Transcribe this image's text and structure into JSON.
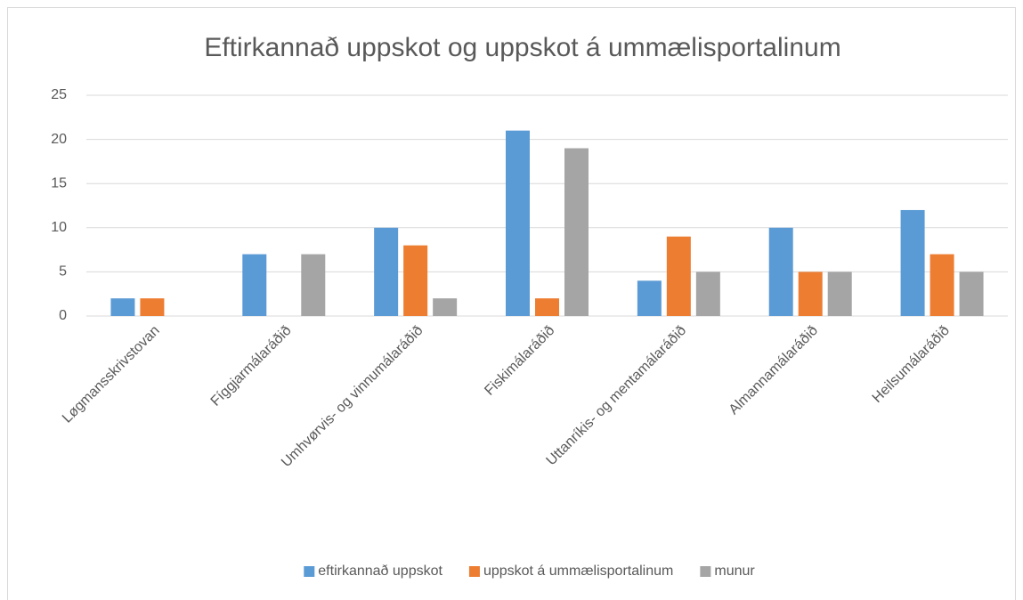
{
  "chart_data": {
    "type": "bar",
    "title": "Eftirkannað uppskot og uppskot á ummælisportalinum",
    "categories": [
      "Løgmansskrivstovan",
      "Fíggjarmálaráðið",
      "Umhvørvis- og vinnumálaráðið",
      "Fiskimálaráðið",
      "Uttanríkis- og mentamálaráðið",
      "Almannamálaráðið",
      "Heilsumálaráðið"
    ],
    "series": [
      {
        "name": "eftirkannað uppskot",
        "color": "#5b9bd5",
        "values": [
          2,
          7,
          10,
          21,
          4,
          10,
          12
        ]
      },
      {
        "name": "uppskot á ummælisportalinum",
        "color": "#ed7d31",
        "values": [
          2,
          0,
          8,
          2,
          9,
          5,
          7
        ]
      },
      {
        "name": "munur",
        "color": "#a5a5a5",
        "values": [
          0,
          7,
          2,
          19,
          5,
          5,
          5
        ]
      }
    ],
    "ylim": [
      0,
      25
    ],
    "yticks": [
      0,
      5,
      10,
      15,
      20,
      25
    ],
    "grid": true,
    "legend": "bottom"
  }
}
